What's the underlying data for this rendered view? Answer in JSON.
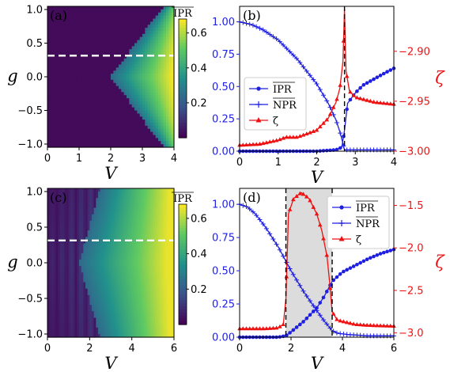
{
  "colors": {
    "blue": "#1f1fe0",
    "red": "#ee1111",
    "dash_black": "#000000",
    "dash_white": "#ffffff",
    "shade": "#dcdcdc"
  },
  "chart_data": [
    {
      "panel": "(a)",
      "type": "heatmap",
      "xlabel": "V",
      "ylabel": "g",
      "xlim": [
        0,
        4
      ],
      "ylim": [
        -1,
        1
      ],
      "xticks": [
        "0",
        "1",
        "2",
        "3",
        "4"
      ],
      "yticks": [
        "1.0",
        "0.5",
        "0.0",
        "−0.5",
        "−1.0"
      ],
      "colorbar": {
        "label": "IPR",
        "range": [
          0,
          0.68
        ],
        "ticks": [
          "0.6",
          "0.4",
          "0.2"
        ]
      },
      "dashed_line_g": 0.3,
      "localized_region": {
        "onset_V_at_g0": 2.0,
        "half_width_slope": 0.33,
        "max_value": 0.68
      },
      "stripes": false
    },
    {
      "panel": "(b)",
      "type": "line",
      "xlabel": "V",
      "ylabel_right": "ζ",
      "xlim": [
        0,
        4
      ],
      "ylim_left": [
        0,
        1.12
      ],
      "ylim_right": [
        -3.0,
        -2.855
      ],
      "xticks": [
        "0",
        "1",
        "2",
        "3",
        "4"
      ],
      "yticks_left": [
        "1.00",
        "0.75",
        "0.50",
        "0.25",
        "0.00"
      ],
      "yticks_right": [
        "−2.90",
        "−2.95",
        "−3.00"
      ],
      "legend": {
        "position": "center-left",
        "entries": [
          "IPR",
          "NPR",
          "ζ"
        ]
      },
      "vlines": [
        2.72
      ],
      "series": [
        {
          "name": "IPR",
          "axis": "left",
          "color": "#1f1fe0",
          "marker": "dot",
          "x": [
            0,
            0.5,
            1,
            1.5,
            2,
            2.5,
            2.65,
            2.72,
            2.8,
            3,
            3.2,
            3.5,
            3.8,
            4
          ],
          "y": [
            0,
            0,
            0,
            0,
            0,
            0.01,
            0.03,
            0.16,
            0.37,
            0.45,
            0.51,
            0.56,
            0.61,
            0.64
          ]
        },
        {
          "name": "NPR",
          "axis": "left",
          "color": "#1f1fe0",
          "marker": "plus",
          "x": [
            0,
            0.3,
            0.6,
            1,
            1.5,
            2,
            2.3,
            2.5,
            2.6,
            2.68,
            2.72,
            2.8,
            3,
            4
          ],
          "y": [
            1.0,
            0.98,
            0.94,
            0.86,
            0.71,
            0.52,
            0.37,
            0.24,
            0.15,
            0.06,
            0.01,
            0.01,
            0.01,
            0.01
          ]
        },
        {
          "name": "ζ",
          "axis": "right",
          "color": "#ee1111",
          "marker": "triangle",
          "x": [
            0,
            0.5,
            1,
            1.2,
            1.5,
            2,
            2.3,
            2.5,
            2.6,
            2.68,
            2.72,
            2.76,
            2.85,
            3,
            3.5,
            4
          ],
          "y": [
            -2.994,
            -2.993,
            -2.989,
            -2.986,
            -2.986,
            -2.979,
            -2.967,
            -2.951,
            -2.937,
            -2.91,
            -2.858,
            -2.92,
            -2.94,
            -2.946,
            -2.951,
            -2.953
          ]
        }
      ]
    },
    {
      "panel": "(c)",
      "type": "heatmap",
      "xlabel": "V",
      "ylabel": "g",
      "xlim": [
        0,
        6
      ],
      "ylim": [
        -1,
        1
      ],
      "xticks": [
        "0",
        "2",
        "4",
        "6"
      ],
      "yticks": [
        "1.0",
        "0.5",
        "0.0",
        "−0.5",
        "−1.0"
      ],
      "colorbar": {
        "label": "IPR",
        "range": [
          0,
          0.68
        ],
        "ticks": [
          "0.6",
          "0.4",
          "0.2"
        ]
      },
      "dashed_line_g": 0.3,
      "localized_region": {
        "onset_V_at_g0": 1.5,
        "half_width_slope": 0.55,
        "max_value": 0.66
      },
      "stripes": true
    },
    {
      "panel": "(d)",
      "type": "line",
      "xlabel": "V",
      "ylabel_right": "ζ",
      "xlim": [
        0,
        6
      ],
      "ylim_left": [
        0,
        1.12
      ],
      "ylim_right": [
        -3.05,
        -1.3
      ],
      "xticks": [
        "0",
        "2",
        "4",
        "6"
      ],
      "yticks_left": [
        "1.00",
        "0.75",
        "0.50",
        "0.25",
        "0.00"
      ],
      "yticks_right": [
        "−1.5",
        "−2.0",
        "−2.5",
        "−3.0"
      ],
      "legend": {
        "position": "top-right",
        "entries": [
          "IPR",
          "NPR",
          "ζ"
        ]
      },
      "vlines": [
        1.8,
        3.6
      ],
      "shaded_region": [
        1.8,
        3.6
      ],
      "series": [
        {
          "name": "IPR",
          "axis": "left",
          "color": "#1f1fe0",
          "marker": "dot",
          "x": [
            0,
            0.5,
            1,
            1.5,
            1.8,
            2,
            2.5,
            3,
            3.3,
            3.6,
            4,
            4.5,
            5,
            5.5,
            6
          ],
          "y": [
            0,
            0,
            0,
            0,
            0.01,
            0.04,
            0.12,
            0.22,
            0.31,
            0.42,
            0.49,
            0.54,
            0.59,
            0.63,
            0.66
          ]
        },
        {
          "name": "NPR",
          "axis": "left",
          "color": "#1f1fe0",
          "marker": "plus",
          "x": [
            0,
            0.3,
            0.6,
            1,
            1.5,
            2,
            2.5,
            3,
            3.3,
            3.6,
            3.8,
            4.2,
            5,
            6
          ],
          "y": [
            1.0,
            0.98,
            0.93,
            0.83,
            0.68,
            0.5,
            0.34,
            0.2,
            0.12,
            0.05,
            0.03,
            0.02,
            0.01,
            0.01
          ]
        },
        {
          "name": "ζ",
          "axis": "right",
          "color": "#ee1111",
          "marker": "triangle",
          "x": [
            0,
            0.5,
            1,
            1.5,
            1.7,
            1.8,
            1.9,
            2.1,
            2.4,
            2.7,
            3.0,
            3.2,
            3.4,
            3.5,
            3.6,
            3.8,
            4.5,
            5,
            6
          ],
          "y": [
            -2.95,
            -2.95,
            -2.95,
            -2.94,
            -2.9,
            -2.6,
            -1.6,
            -1.42,
            -1.35,
            -1.42,
            -1.6,
            -1.8,
            -2.1,
            -2.4,
            -2.75,
            -2.85,
            -2.9,
            -2.91,
            -2.92
          ]
        }
      ]
    }
  ]
}
